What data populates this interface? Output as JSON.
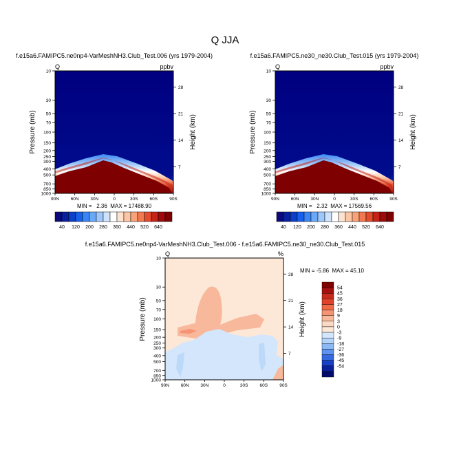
{
  "chart_data": [
    {
      "type": "heatmap",
      "panel": "top-left",
      "title": "f.e15a6.FAMIPC5.ne0np4-VarMeshNH3.Club_Test.006 (yrs 1979-2004)",
      "left_string": "Q",
      "right_string": "ppbv",
      "ylabel": "Pressure (mb)",
      "ylabel_right": "Height (km)",
      "x_ticks": [
        "90N",
        "60N",
        "30N",
        "0",
        "30S",
        "60S",
        "90S"
      ],
      "x_range": [
        90,
        -90
      ],
      "pressure_ticks": [
        10,
        30,
        50,
        70,
        100,
        150,
        200,
        250,
        300,
        400,
        500,
        700,
        850,
        1000
      ],
      "height_ticks": [
        28,
        21,
        14,
        7
      ],
      "min_label": "MIN =   2.36  MAX = 17488.90",
      "min": 2.36,
      "max": 17488.9,
      "colorbar_labels": [
        "40",
        "120",
        "200",
        "280",
        "360",
        "440",
        "520",
        "640"
      ],
      "field": "specific humidity, high in lower troposphere below tropopause peak near 20N"
    },
    {
      "type": "heatmap",
      "panel": "top-right",
      "title": "f.e15a6.FAMIPC5.ne30_ne30.Club_Test.015 (yrs 1979-2004)",
      "left_string": "Q",
      "right_string": "ppbv",
      "ylabel": "Pressure (mb)",
      "ylabel_right": "Height (km)",
      "x_ticks": [
        "90N",
        "60N",
        "30N",
        "0",
        "30S",
        "60S",
        "90S"
      ],
      "x_range": [
        90,
        -90
      ],
      "pressure_ticks": [
        10,
        30,
        50,
        70,
        100,
        150,
        200,
        250,
        300,
        400,
        500,
        700,
        850,
        1000
      ],
      "height_ticks": [
        28,
        21,
        14,
        7
      ],
      "min_label": "MIN =   2.32  MAX = 17569.56",
      "min": 2.32,
      "max": 17569.56,
      "colorbar_labels": [
        "40",
        "120",
        "200",
        "280",
        "360",
        "440",
        "520",
        "640"
      ]
    },
    {
      "type": "heatmap",
      "panel": "bottom-difference",
      "title": "f.e15a6.FAMIPC5.ne0np4-VarMeshNH3.Club_Test.006 - f.e15a6.FAMIPC5.ne30_ne30.Club_Test.015",
      "left_string": "Q",
      "right_string": "%",
      "ylabel": "Pressure (mb)",
      "ylabel_right": "Height (km)",
      "x_ticks": [
        "90N",
        "60N",
        "30N",
        "0",
        "30S",
        "60S",
        "90S"
      ],
      "x_range": [
        90,
        -90
      ],
      "pressure_ticks": [
        10,
        30,
        50,
        70,
        100,
        150,
        200,
        250,
        300,
        400,
        500,
        700,
        850,
        1000
      ],
      "height_ticks": [
        28,
        21,
        14,
        7
      ],
      "min_label": "MIN = -5.86  MAX = 45.10",
      "min": -5.86,
      "max": 45.1,
      "colorbar_labels": [
        "54",
        "45",
        "36",
        "27",
        "18",
        "9",
        "3",
        "0",
        "-3",
        "-9",
        "-18",
        "-27",
        "-36",
        "-45",
        "-54"
      ]
    }
  ],
  "figure_title": "Q JJA",
  "colors": {
    "seq_palette": [
      "#0a0a7a",
      "#08209e",
      "#0a3fc8",
      "#1760ec",
      "#3b86f4",
      "#6aa9f8",
      "#9ec7fa",
      "#cfe2fb",
      "#ffffff",
      "#fde3cf",
      "#fcc5a4",
      "#f9a27a",
      "#f2784f",
      "#e44b2d",
      "#c42317",
      "#9c0a0a",
      "#7f0000"
    ],
    "diff_palette": [
      "#7f0000",
      "#a50f0f",
      "#c82a1d",
      "#e0422c",
      "#f06a47",
      "#f59473",
      "#f8b89c",
      "#fcd9c4",
      "#fde8d8",
      "#d4e6fb",
      "#b4d3f8",
      "#8cb8f4",
      "#5e94ef",
      "#3668e0",
      "#1a3fc7",
      "#0b1f9a",
      "#050b6b"
    ],
    "field_low": "#000080",
    "field_high": "#7f0000",
    "diff_background": "#fde8d8",
    "diff_positive": "#f8b89c",
    "diff_negative": "#d4e6fb"
  }
}
